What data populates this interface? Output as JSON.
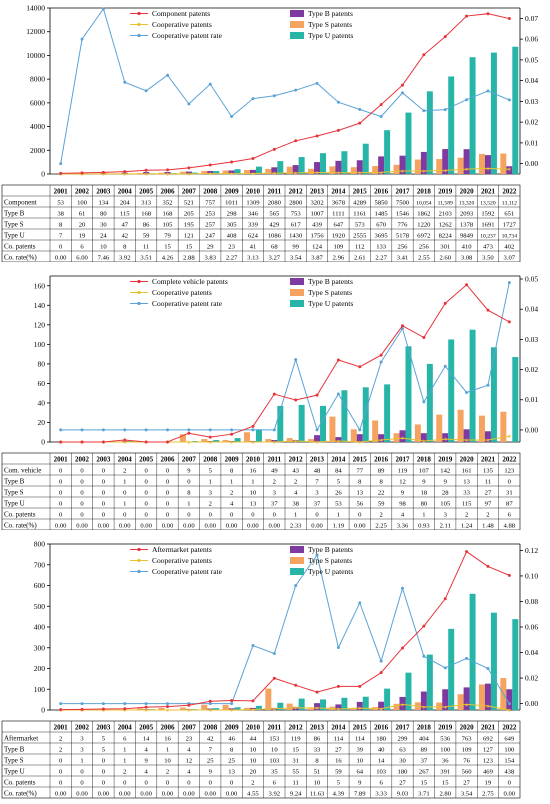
{
  "years": [
    "2001",
    "2002",
    "2003",
    "2004",
    "2005",
    "2006",
    "2007",
    "2008",
    "2009",
    "2010",
    "2011",
    "2012",
    "2013",
    "2014",
    "2015",
    "2016",
    "2017",
    "2018",
    "2019",
    "2020",
    "2021",
    "2022"
  ],
  "colors": {
    "total": "#e8333a",
    "coop": "#e9c231",
    "rate": "#5ba3d6",
    "typeB": "#7e3aa0",
    "typeS": "#f4a460",
    "typeU": "#27b5a8"
  },
  "chart_data": [
    {
      "type": "bar",
      "legend": [
        "Component patents",
        "Cooperative patents",
        "Cooperative patent rate",
        "Type B patents",
        "Type S patents",
        "Type U patents"
      ],
      "ylim": [
        0,
        14000
      ],
      "yticks": [
        "0",
        "2000",
        "4000",
        "6000",
        "8000",
        "10000",
        "12000",
        "14000"
      ],
      "y2lim": [
        -0.005,
        0.075
      ],
      "y2ticks": [
        "0.00",
        "0.01",
        "0.02",
        "0.03",
        "0.04",
        "0.05",
        "0.06",
        "0.07"
      ],
      "row_labels": [
        "Component",
        "Type B",
        "Type S",
        "Type U",
        "Co. patents",
        "Co. rate(%)"
      ],
      "total": [
        53,
        100,
        134,
        204,
        313,
        352,
        521,
        757,
        1011,
        1309,
        2080,
        2800,
        3202,
        3678,
        4289,
        5850,
        7500,
        10054,
        11589,
        13320,
        13520,
        13112
      ],
      "total_text": [
        "53",
        "100",
        "134",
        "204",
        "313",
        "352",
        "521",
        "757",
        "1011",
        "1309",
        "2080",
        "2800",
        "3202",
        "3678",
        "4289",
        "5850",
        "7500",
        "10,054",
        "11,589",
        "13,320",
        "13,520",
        "13,112"
      ],
      "typeB": [
        38,
        61,
        80,
        115,
        168,
        168,
        205,
        253,
        298,
        346,
        565,
        753,
        1007,
        1111,
        1161,
        1485,
        1546,
        1862,
        2103,
        2093,
        1592,
        651
      ],
      "typeS": [
        8,
        20,
        30,
        47,
        86,
        105,
        195,
        257,
        305,
        339,
        429,
        617,
        439,
        647,
        573,
        670,
        776,
        1220,
        1262,
        1378,
        1691,
        1727
      ],
      "typeU": [
        7,
        19,
        24,
        42,
        59,
        79,
        121,
        247,
        408,
        624,
        1086,
        1430,
        1756,
        1920,
        2555,
        3695,
        5178,
        6972,
        8224,
        9849,
        10237,
        10734
      ],
      "typeU_text": [
        "7",
        "19",
        "24",
        "42",
        "59",
        "79",
        "121",
        "247",
        "408",
        "624",
        "1086",
        "1430",
        "1756",
        "1920",
        "2555",
        "3695",
        "5178",
        "6972",
        "8224",
        "9849",
        "10,237",
        "10,734"
      ],
      "coop": [
        0,
        6,
        10,
        8,
        11,
        15,
        15,
        29,
        23,
        41,
        68,
        99,
        124,
        109,
        112,
        133,
        256,
        256,
        301,
        410,
        473,
        402
      ],
      "rate": [
        0,
        6,
        7.46,
        3.92,
        3.51,
        4.26,
        2.88,
        3.83,
        2.27,
        3.13,
        3.27,
        3.54,
        3.87,
        2.96,
        2.61,
        2.27,
        3.41,
        2.55,
        2.6,
        3.08,
        3.5,
        3.07
      ],
      "rate_text": [
        "0.00",
        "6.00",
        "7.46",
        "3.92",
        "3.51",
        "4.26",
        "2.88",
        "3.83",
        "2.27",
        "3.13",
        "3.27",
        "3.54",
        "3.87",
        "2.96",
        "2.61",
        "2.27",
        "3.41",
        "2.55",
        "2.60",
        "3.08",
        "3.50",
        "3.07"
      ]
    },
    {
      "type": "bar",
      "legend": [
        "Complete vehicle patents",
        "Cooperative patents",
        "Cooperative patent rate",
        "Type B patents",
        "Type S patents",
        "Type U patents"
      ],
      "ylim": [
        0,
        170
      ],
      "yticks": [
        "0",
        "20",
        "40",
        "60",
        "80",
        "100",
        "120",
        "140",
        "160"
      ],
      "y2lim": [
        -0.004,
        0.051
      ],
      "y2ticks": [
        "0.00",
        "0.01",
        "0.02",
        "0.03",
        "0.04",
        "0.05"
      ],
      "row_labels": [
        "Com. vehicle",
        "Type B",
        "Type S",
        "Type U",
        "Co. patents",
        "Co. rate(%)"
      ],
      "total": [
        0,
        0,
        0,
        2,
        0,
        0,
        9,
        5,
        8,
        16,
        49,
        43,
        48,
        84,
        77,
        89,
        119,
        107,
        142,
        161,
        135,
        123
      ],
      "total_text": [
        "0",
        "0",
        "0",
        "2",
        "0",
        "0",
        "9",
        "5",
        "8",
        "16",
        "49",
        "43",
        "48",
        "84",
        "77",
        "89",
        "119",
        "107",
        "142",
        "161",
        "135",
        "123"
      ],
      "typeB": [
        0,
        0,
        0,
        1,
        0,
        0,
        0,
        1,
        1,
        1,
        2,
        2,
        7,
        5,
        8,
        8,
        12,
        9,
        9,
        13,
        11,
        0
      ],
      "typeS": [
        0,
        0,
        0,
        0,
        0,
        0,
        8,
        3,
        2,
        10,
        3,
        4,
        3,
        26,
        13,
        22,
        9,
        18,
        28,
        33,
        27,
        31
      ],
      "typeU": [
        0,
        0,
        0,
        1,
        0,
        0,
        1,
        2,
        4,
        13,
        37,
        38,
        37,
        53,
        56,
        59,
        98,
        80,
        105,
        115,
        97,
        87
      ],
      "typeU_text": [
        "0",
        "0",
        "0",
        "1",
        "0",
        "0",
        "1",
        "2",
        "4",
        "13",
        "37",
        "38",
        "37",
        "53",
        "56",
        "59",
        "98",
        "80",
        "105",
        "115",
        "97",
        "87"
      ],
      "coop": [
        0,
        0,
        0,
        0,
        0,
        0,
        0,
        0,
        0,
        0,
        0,
        1,
        0,
        1,
        0,
        2,
        4,
        1,
        3,
        2,
        2,
        6
      ],
      "rate": [
        0,
        0,
        0,
        0,
        0,
        0,
        0,
        0,
        0,
        0,
        0,
        2.33,
        0,
        1.19,
        0,
        2.25,
        3.36,
        0.93,
        2.11,
        1.24,
        1.48,
        4.88
      ],
      "rate_text": [
        "0.00",
        "0.00",
        "0.00",
        "0.00",
        "0.00",
        "0.00",
        "0.00",
        "0.00",
        "0.00",
        "0.00",
        "0.00",
        "2.33",
        "0.00",
        "1.19",
        "0.00",
        "2.25",
        "3.36",
        "0.93",
        "2.11",
        "1.24",
        "1.48",
        "4.88"
      ]
    },
    {
      "type": "bar",
      "legend": [
        "Aftermarket patents",
        "Cooperative patents",
        "Cooperative patent rate",
        "Type B patents",
        "Type S patents",
        "Type U patents"
      ],
      "ylim": [
        0,
        800
      ],
      "yticks": [
        "0",
        "100",
        "200",
        "300",
        "400",
        "500",
        "600",
        "700",
        "800"
      ],
      "y2lim": [
        -0.005,
        0.125
      ],
      "y2ticks": [
        "0.00",
        "0.02",
        "0.04",
        "0.06",
        "0.08",
        "0.10",
        "0.12"
      ],
      "row_labels": [
        "Aftermarket",
        "Type B",
        "Type S",
        "Type U",
        "Co. patents",
        "Co. rate(%)"
      ],
      "total": [
        2,
        3,
        5,
        6,
        14,
        16,
        23,
        42,
        46,
        44,
        153,
        119,
        86,
        114,
        114,
        180,
        299,
        404,
        536,
        763,
        692,
        649
      ],
      "total_text": [
        "2",
        "3",
        "5",
        "6",
        "14",
        "16",
        "23",
        "42",
        "46",
        "44",
        "153",
        "119",
        "86",
        "114",
        "114",
        "180",
        "299",
        "404",
        "536",
        "763",
        "692",
        "649"
      ],
      "typeB": [
        2,
        3,
        5,
        1,
        4,
        1,
        4,
        7,
        8,
        10,
        10,
        15,
        33,
        27,
        39,
        40,
        63,
        89,
        100,
        109,
        127,
        100
      ],
      "typeS": [
        0,
        1,
        0,
        1,
        9,
        10,
        12,
        25,
        25,
        10,
        103,
        31,
        8,
        16,
        10,
        14,
        30,
        37,
        36,
        76,
        123,
        154
      ],
      "typeU": [
        0,
        0,
        0,
        2,
        4,
        2,
        4,
        9,
        13,
        20,
        35,
        55,
        51,
        59,
        64,
        103,
        180,
        267,
        391,
        560,
        469,
        438
      ],
      "typeU_text": [
        "0",
        "0",
        "0",
        "2",
        "4",
        "2",
        "4",
        "9",
        "13",
        "20",
        "35",
        "55",
        "51",
        "59",
        "64",
        "103",
        "180",
        "267",
        "391",
        "560",
        "469",
        "438"
      ],
      "coop": [
        0,
        0,
        0,
        0,
        0,
        0,
        0,
        0,
        0,
        2,
        6,
        11,
        10,
        5,
        9,
        6,
        27,
        15,
        15,
        27,
        19,
        0
      ],
      "rate": [
        0,
        0,
        0,
        0,
        0,
        0,
        0,
        0,
        0,
        4.55,
        3.92,
        9.24,
        11.63,
        4.39,
        7.89,
        3.33,
        9.03,
        3.71,
        2.8,
        3.54,
        2.75,
        0
      ],
      "rate_text": [
        "0.00",
        "0.00",
        "0.00",
        "0.00",
        "0.00",
        "0.00",
        "0.00",
        "0.00",
        "0.00",
        "4.55",
        "3.92",
        "9.24",
        "11.63",
        "4.39",
        "7.89",
        "3.33",
        "9.03",
        "3.71",
        "2.80",
        "3.54",
        "2.75",
        "0.00"
      ]
    }
  ]
}
